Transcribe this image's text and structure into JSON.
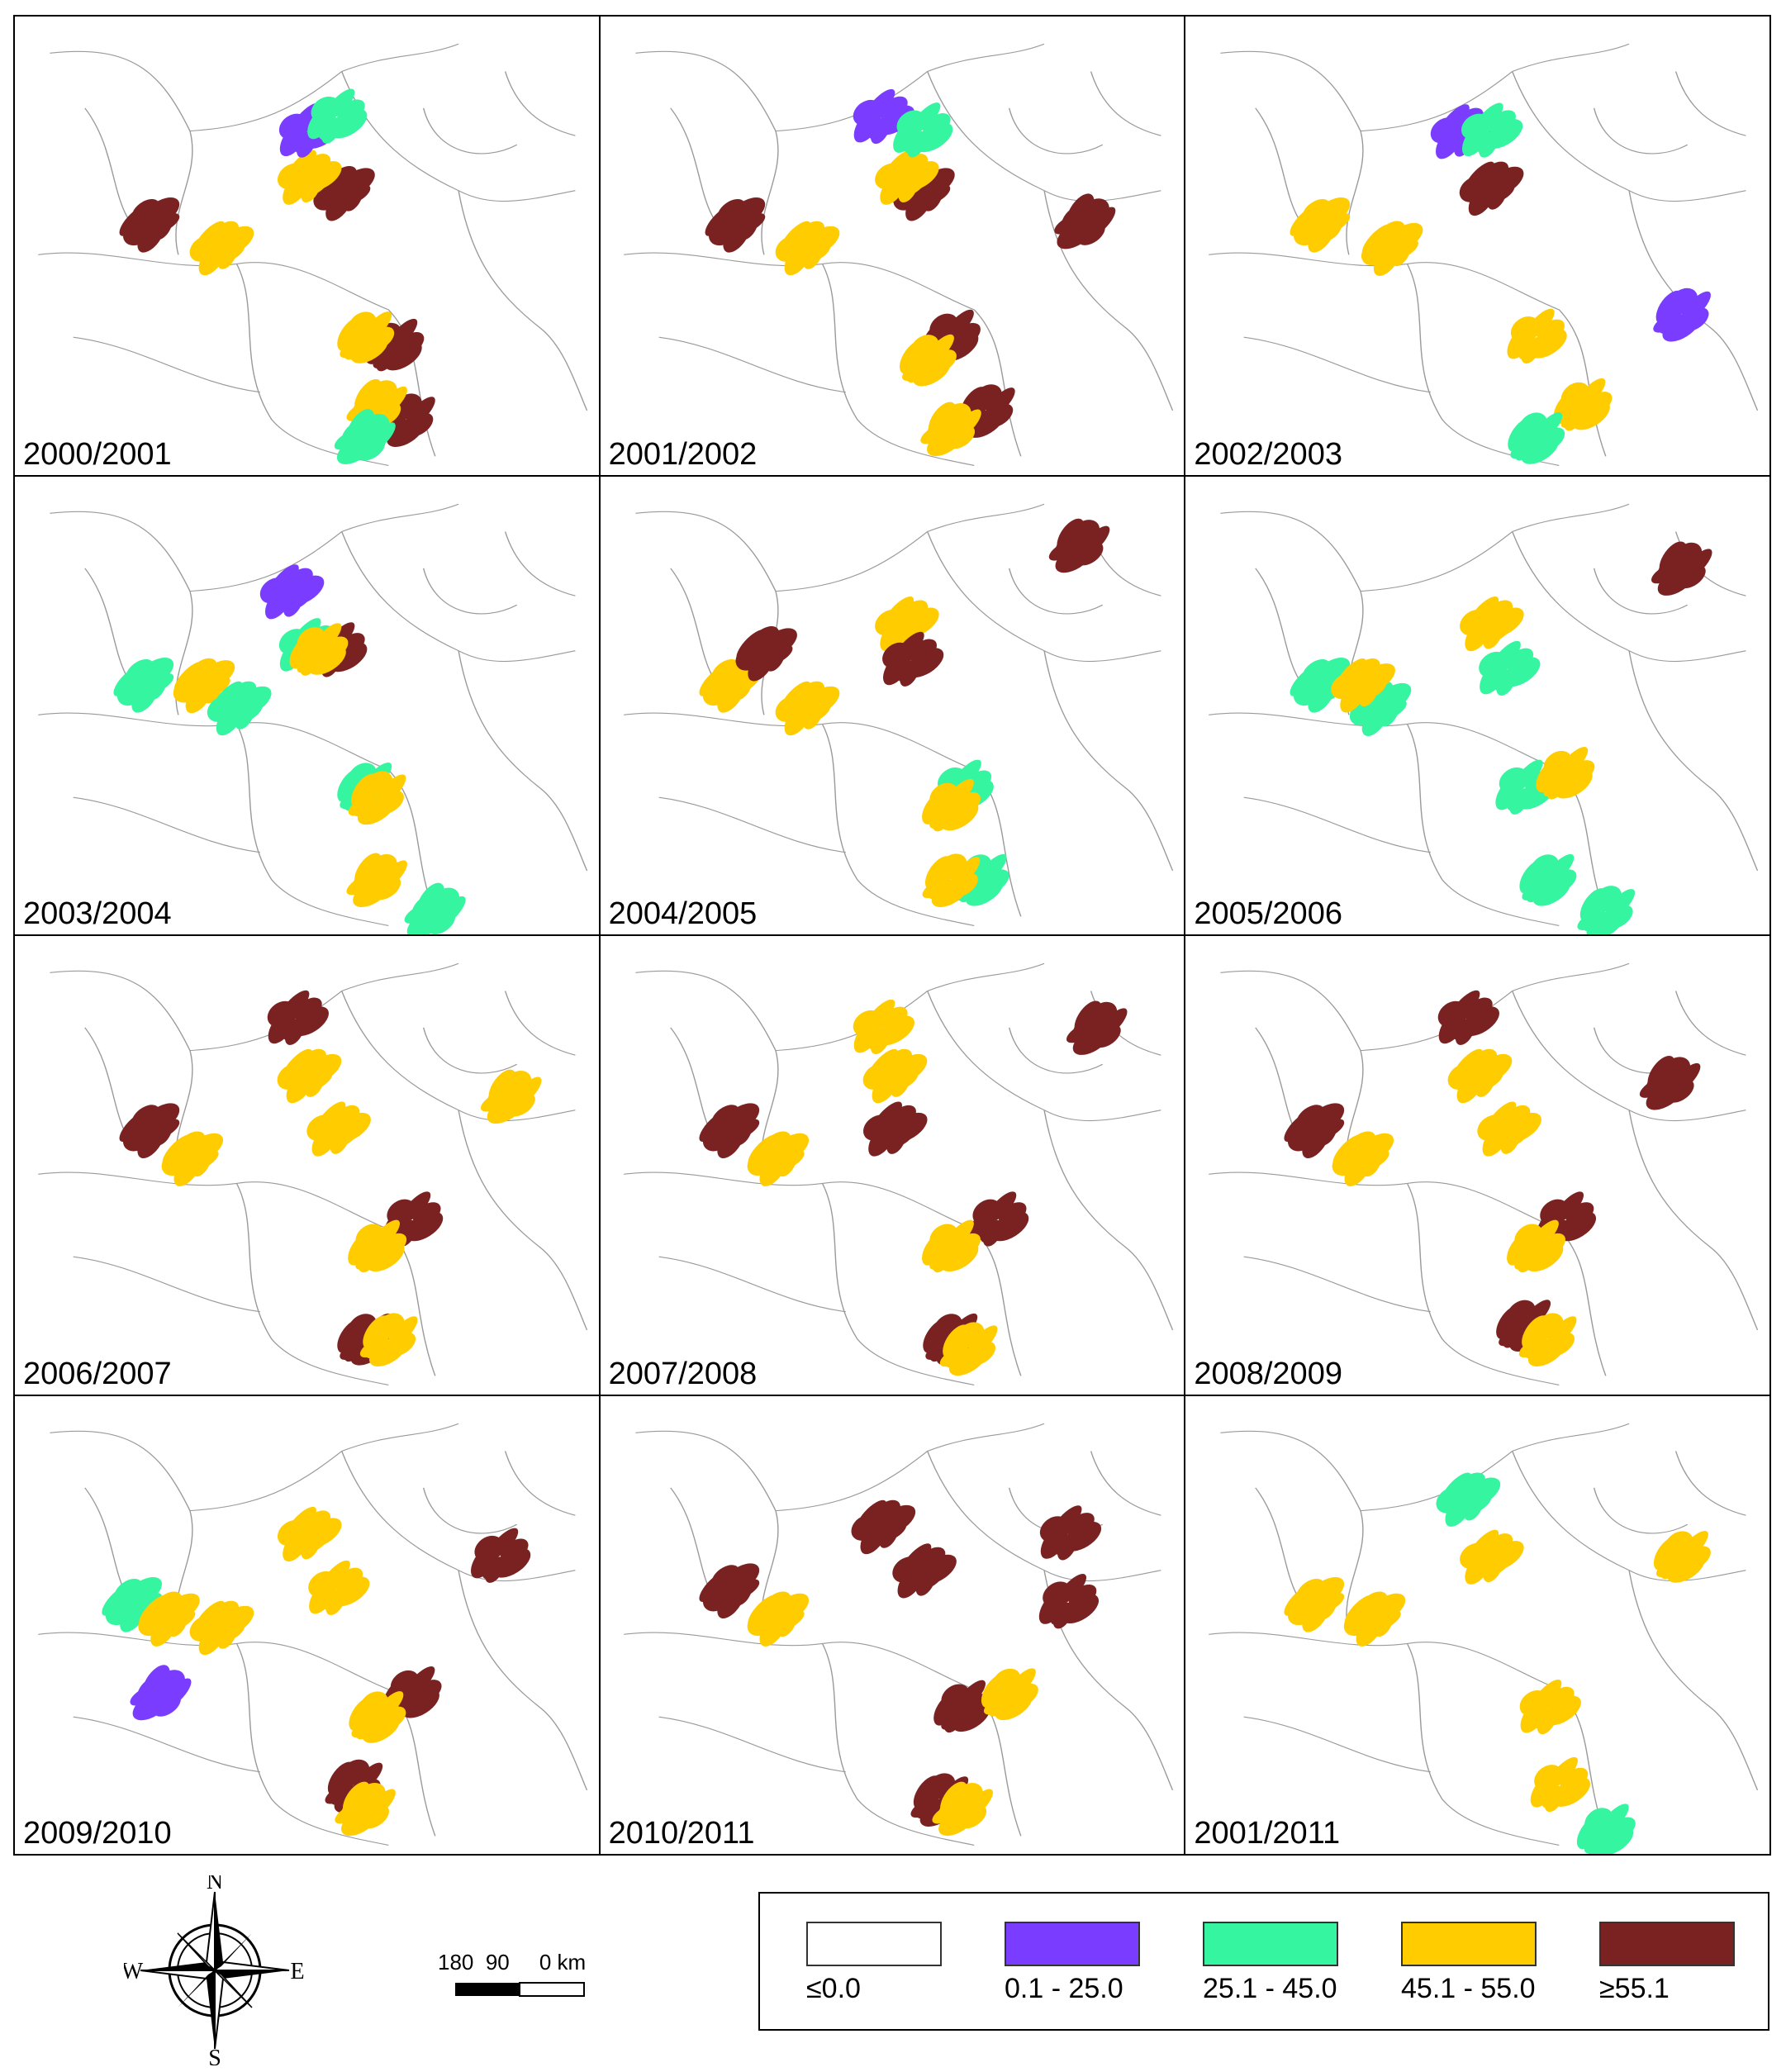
{
  "panels": [
    {
      "label": "2000/2001",
      "patches": [
        [
          "brown",
          0.23,
          0.45
        ],
        [
          "brown",
          0.56,
          0.38
        ],
        [
          "yellow",
          0.35,
          0.5
        ],
        [
          "yellow",
          0.5,
          0.35
        ],
        [
          "purple",
          0.5,
          0.25
        ],
        [
          "green",
          0.55,
          0.22
        ],
        [
          "brown",
          0.65,
          0.72
        ],
        [
          "yellow",
          0.6,
          0.7
        ],
        [
          "brown",
          0.67,
          0.88
        ],
        [
          "yellow",
          0.62,
          0.85
        ],
        [
          "green",
          0.6,
          0.92
        ]
      ]
    },
    {
      "label": "2001/2002",
      "patches": [
        [
          "brown",
          0.23,
          0.45
        ],
        [
          "brown",
          0.55,
          0.38
        ],
        [
          "yellow",
          0.35,
          0.5
        ],
        [
          "yellow",
          0.52,
          0.35
        ],
        [
          "purple",
          0.48,
          0.22
        ],
        [
          "green",
          0.55,
          0.25
        ],
        [
          "brown",
          0.6,
          0.7
        ],
        [
          "yellow",
          0.56,
          0.75
        ],
        [
          "brown",
          0.66,
          0.86
        ],
        [
          "yellow",
          0.6,
          0.9
        ],
        [
          "brown",
          0.83,
          0.45
        ]
      ]
    },
    {
      "label": "2002/2003",
      "patches": [
        [
          "yellow",
          0.23,
          0.45
        ],
        [
          "yellow",
          0.35,
          0.5
        ],
        [
          "brown",
          0.52,
          0.37
        ],
        [
          "purple",
          0.47,
          0.25
        ],
        [
          "green",
          0.52,
          0.25
        ],
        [
          "yellow",
          0.6,
          0.7
        ],
        [
          "yellow",
          0.68,
          0.85
        ],
        [
          "green",
          0.6,
          0.92
        ],
        [
          "purple",
          0.85,
          0.65
        ]
      ]
    },
    {
      "label": "2003/2004",
      "patches": [
        [
          "green",
          0.22,
          0.45
        ],
        [
          "yellow",
          0.32,
          0.45
        ],
        [
          "green",
          0.38,
          0.5
        ],
        [
          "purple",
          0.47,
          0.25
        ],
        [
          "green",
          0.5,
          0.37
        ],
        [
          "brown",
          0.55,
          0.38
        ],
        [
          "yellow",
          0.52,
          0.38
        ],
        [
          "green",
          0.6,
          0.68
        ],
        [
          "yellow",
          0.62,
          0.7
        ],
        [
          "yellow",
          0.62,
          0.88
        ],
        [
          "green",
          0.72,
          0.95
        ]
      ]
    },
    {
      "label": "2004/2005",
      "patches": [
        [
          "yellow",
          0.22,
          0.45
        ],
        [
          "brown",
          0.28,
          0.38
        ],
        [
          "yellow",
          0.35,
          0.5
        ],
        [
          "yellow",
          0.52,
          0.32
        ],
        [
          "brown",
          0.53,
          0.4
        ],
        [
          "green",
          0.62,
          0.68
        ],
        [
          "yellow",
          0.6,
          0.72
        ],
        [
          "green",
          0.65,
          0.88
        ],
        [
          "yellow",
          0.6,
          0.88
        ],
        [
          "brown",
          0.82,
          0.15
        ]
      ]
    },
    {
      "label": "2005/2006",
      "patches": [
        [
          "green",
          0.23,
          0.45
        ],
        [
          "green",
          0.33,
          0.5
        ],
        [
          "yellow",
          0.3,
          0.45
        ],
        [
          "yellow",
          0.52,
          0.32
        ],
        [
          "green",
          0.55,
          0.42
        ],
        [
          "green",
          0.58,
          0.68
        ],
        [
          "yellow",
          0.65,
          0.65
        ],
        [
          "green",
          0.62,
          0.88
        ],
        [
          "green",
          0.72,
          0.95
        ],
        [
          "brown",
          0.85,
          0.2
        ]
      ]
    },
    {
      "label": "2006/2007",
      "patches": [
        [
          "brown",
          0.23,
          0.42
        ],
        [
          "yellow",
          0.3,
          0.48
        ],
        [
          "yellow",
          0.5,
          0.3
        ],
        [
          "yellow",
          0.55,
          0.42
        ],
        [
          "brown",
          0.48,
          0.18
        ],
        [
          "brown",
          0.68,
          0.62
        ],
        [
          "yellow",
          0.62,
          0.68
        ],
        [
          "brown",
          0.6,
          0.88
        ],
        [
          "yellow",
          0.64,
          0.88
        ],
        [
          "yellow",
          0.85,
          0.35
        ]
      ]
    },
    {
      "label": "2007/2008",
      "patches": [
        [
          "brown",
          0.22,
          0.42
        ],
        [
          "yellow",
          0.3,
          0.48
        ],
        [
          "yellow",
          0.5,
          0.3
        ],
        [
          "brown",
          0.5,
          0.42
        ],
        [
          "yellow",
          0.48,
          0.2
        ],
        [
          "brown",
          0.68,
          0.62
        ],
        [
          "yellow",
          0.6,
          0.68
        ],
        [
          "brown",
          0.6,
          0.88
        ],
        [
          "yellow",
          0.63,
          0.9
        ],
        [
          "brown",
          0.85,
          0.2
        ]
      ]
    },
    {
      "label": "2008/2009",
      "patches": [
        [
          "brown",
          0.22,
          0.42
        ],
        [
          "yellow",
          0.3,
          0.48
        ],
        [
          "yellow",
          0.5,
          0.3
        ],
        [
          "yellow",
          0.55,
          0.42
        ],
        [
          "brown",
          0.48,
          0.18
        ],
        [
          "brown",
          0.65,
          0.62
        ],
        [
          "yellow",
          0.6,
          0.68
        ],
        [
          "brown",
          0.58,
          0.85
        ],
        [
          "yellow",
          0.62,
          0.88
        ],
        [
          "brown",
          0.83,
          0.32
        ]
      ]
    },
    {
      "label": "2009/2010",
      "patches": [
        [
          "green",
          0.2,
          0.45
        ],
        [
          "yellow",
          0.26,
          0.48
        ],
        [
          "yellow",
          0.35,
          0.5
        ],
        [
          "yellow",
          0.5,
          0.3
        ],
        [
          "yellow",
          0.55,
          0.42
        ],
        [
          "brown",
          0.83,
          0.35
        ],
        [
          "brown",
          0.68,
          0.65
        ],
        [
          "yellow",
          0.62,
          0.7
        ],
        [
          "brown",
          0.58,
          0.85
        ],
        [
          "yellow",
          0.6,
          0.9
        ],
        [
          "purple",
          0.25,
          0.65
        ]
      ]
    },
    {
      "label": "2010/2011",
      "patches": [
        [
          "brown",
          0.22,
          0.42
        ],
        [
          "yellow",
          0.3,
          0.48
        ],
        [
          "brown",
          0.48,
          0.28
        ],
        [
          "brown",
          0.55,
          0.38
        ],
        [
          "brown",
          0.8,
          0.3
        ],
        [
          "brown",
          0.8,
          0.45
        ],
        [
          "brown",
          0.62,
          0.68
        ],
        [
          "yellow",
          0.7,
          0.65
        ],
        [
          "brown",
          0.58,
          0.88
        ],
        [
          "yellow",
          0.62,
          0.9
        ]
      ]
    },
    {
      "label": "2001/2011",
      "patches": [
        [
          "yellow",
          0.22,
          0.45
        ],
        [
          "yellow",
          0.32,
          0.48
        ],
        [
          "green",
          0.48,
          0.22
        ],
        [
          "yellow",
          0.52,
          0.35
        ],
        [
          "yellow",
          0.62,
          0.68
        ],
        [
          "yellow",
          0.64,
          0.85
        ],
        [
          "green",
          0.72,
          0.95
        ],
        [
          "yellow",
          0.85,
          0.35
        ]
      ]
    }
  ],
  "compass": {
    "n": "N",
    "s": "S",
    "e": "E",
    "w": "W"
  },
  "scale_bar": {
    "labels": "180  90     0 km"
  },
  "legend": {
    "items": [
      {
        "label": "≤0.0",
        "color": "#ffffff"
      },
      {
        "label": "0.1 - 25.0",
        "color": "#7a3cff"
      },
      {
        "label": "25.1 - 45.0",
        "color": "#36f5a0"
      },
      {
        "label": "45.1 - 55.0",
        "color": "#ffcc00"
      },
      {
        "label": "≥55.1",
        "color": "#7a2222"
      }
    ]
  },
  "colors": {
    "purple": "#7a3cff",
    "green": "#36f5a0",
    "yellow": "#ffcc00",
    "brown": "#7a2222"
  }
}
